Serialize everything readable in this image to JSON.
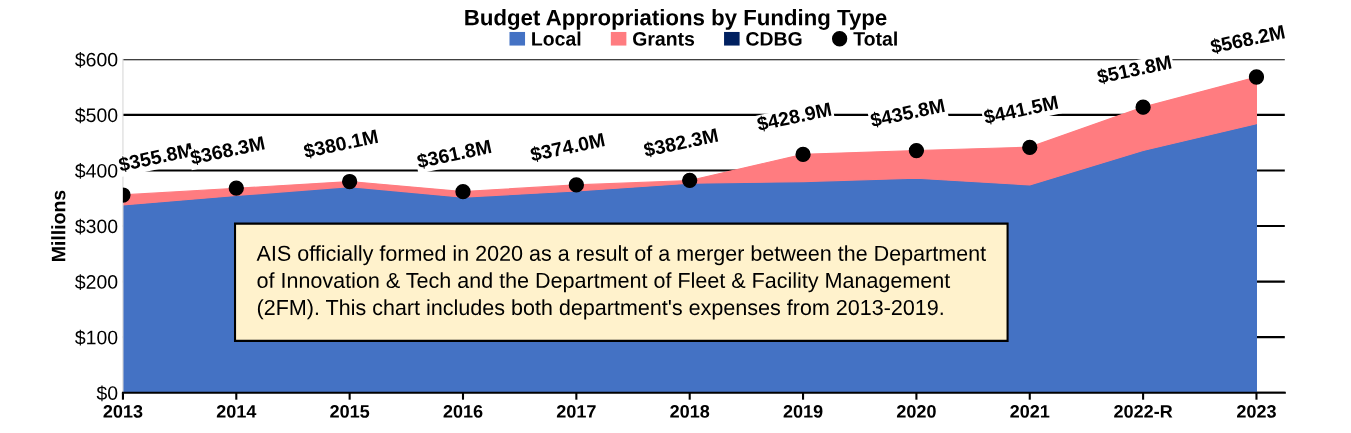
{
  "chart_data": {
    "type": "area",
    "title": "Budget Appropriations by Funding Type",
    "ylabel": "Millions",
    "categories": [
      "2013",
      "2014",
      "2015",
      "2016",
      "2017",
      "2018",
      "2019",
      "2020",
      "2021",
      "2022-R",
      "2023"
    ],
    "stacked": true,
    "series": [
      {
        "name": "Local",
        "color": "#4472c4",
        "values": [
          338,
          355,
          371,
          352,
          363,
          377,
          380,
          386,
          374,
          436,
          484
        ]
      },
      {
        "name": "Grants",
        "color": "#ff7c80",
        "values": [
          18,
          13,
          9,
          10,
          11,
          5,
          49,
          50,
          68,
          78,
          84
        ]
      },
      {
        "name": "CDBG",
        "color": "#002060",
        "values": [
          null,
          null,
          null,
          null,
          null,
          null,
          null,
          null,
          null,
          null,
          null
        ]
      },
      {
        "name": "Total",
        "type": "scatter",
        "color": "#000000",
        "marker": "circle",
        "data_labels": true,
        "value_labels": [
          "$355.8M",
          "$368.3M",
          "$380.1M",
          "$361.8M",
          "$374.0M",
          "$382.3M",
          "$428.9M",
          "$435.8M",
          "$441.5M",
          "$513.8M",
          "$568.2M"
        ],
        "values": [
          355.8,
          368.3,
          380.1,
          361.8,
          374.0,
          382.3,
          428.9,
          435.8,
          441.5,
          513.8,
          568.2
        ]
      }
    ],
    "ylim": [
      0,
      600
    ],
    "yticks": [
      {
        "value": 0,
        "label": "$0"
      },
      {
        "value": 100,
        "label": "$100"
      },
      {
        "value": 200,
        "label": "$200"
      },
      {
        "value": 300,
        "label": "$300"
      },
      {
        "value": 400,
        "label": "$400"
      },
      {
        "value": 500,
        "label": "$500"
      },
      {
        "value": 600,
        "label": "$600"
      }
    ],
    "grid": "y",
    "legend": "top",
    "annotations": [
      "AIS officially formed in 2020 as a result of a merger between the Department\nof Innovation & Tech and the Department of Fleet & Facility Management\n(2FM). This chart includes both department's expenses from 2013-2019."
    ]
  }
}
